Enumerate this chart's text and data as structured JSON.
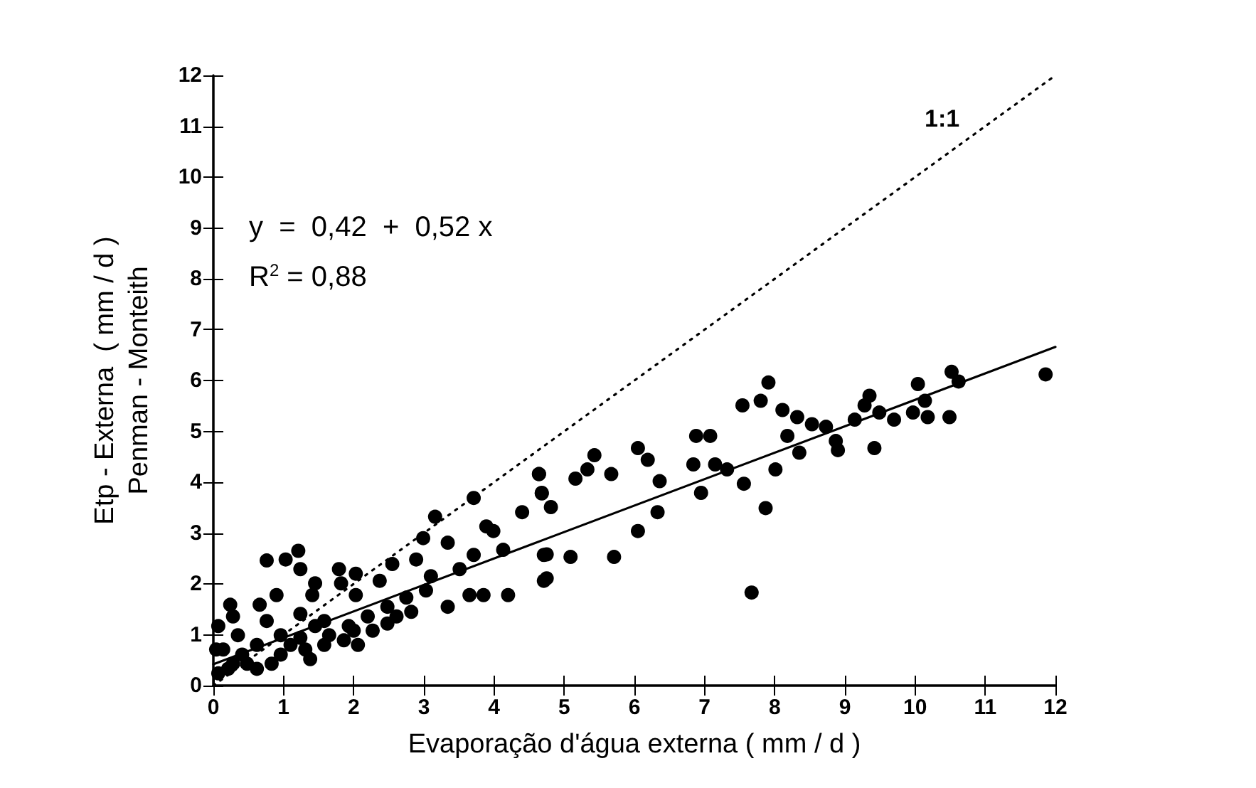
{
  "chart_data": {
    "type": "scatter",
    "xlabel": "Evaporação d'água externa ( mm / d )",
    "ylabel": "Etp - Externa  ( mm / d )\nPenman - Monteith",
    "annotations": [
      "y  =  0,42  +  0,52 x",
      "R$^{2}$ = 0,88",
      "1:1"
    ],
    "xlim": [
      0,
      12
    ],
    "ylim": [
      0,
      12
    ],
    "xticks": [
      0,
      1,
      2,
      3,
      4,
      5,
      6,
      7,
      8,
      9,
      10,
      11,
      12
    ],
    "yticks": [
      0,
      1,
      2,
      3,
      4,
      5,
      6,
      7,
      8,
      9,
      10,
      11,
      12
    ],
    "grid": false,
    "series": [
      {
        "marker": "circle",
        "color": "#000000",
        "x": [
          4.64,
          4.68,
          4.81,
          5.16,
          5.43,
          5.33,
          5.67,
          6.05,
          6.19,
          6.36,
          6.33,
          6.05,
          5.71,
          4.75,
          5.09,
          4.75,
          6.88,
          7.08,
          6.84,
          7.15,
          7.32,
          6.95,
          7.56,
          7.87,
          7.67,
          8.01,
          7.91,
          7.54,
          7.8,
          8.11,
          8.32,
          8.18,
          8.35,
          8.53,
          8.73,
          8.87,
          8.9,
          9.14,
          9.35,
          9.28,
          9.42,
          9.49,
          9.7,
          9.97,
          10.04,
          10.14,
          10.18,
          10.49,
          10.52,
          10.62,
          11.86,
          0.24,
          0.76,
          1.03,
          1.21,
          1.24,
          1.45,
          1.41,
          1.79,
          2.03,
          2.03,
          1.82,
          2.37,
          2.55,
          2.89,
          3.16,
          2.99,
          3.71,
          3.34,
          3.1,
          3.34,
          3.65,
          3.85,
          4.2,
          3.71,
          3.99,
          3.89,
          4.13,
          4.64,
          4.68,
          4.71,
          4.71,
          4.4,
          3.51,
          0.66,
          0.9,
          1.24,
          1.58,
          1.93,
          2.2,
          2.48,
          2.75,
          3.03,
          0.07,
          0.07,
          0.14,
          0.28,
          0.35,
          0.48,
          0.62,
          0.62,
          0.76,
          0.96,
          0.96,
          1.1,
          1.31,
          1.38,
          1.45,
          1.65,
          1.86,
          2.06,
          2.27,
          2.48,
          2.61,
          2.82,
          0.28,
          0.41,
          0.83,
          1.24,
          1.58,
          2.0,
          0.04,
          0.21
        ],
        "values": [
          4.16,
          3.79,
          3.51,
          4.07,
          4.53,
          4.25,
          4.16,
          4.67,
          4.44,
          4.02,
          3.41,
          3.04,
          2.53,
          2.58,
          2.53,
          2.11,
          4.91,
          4.91,
          4.35,
          4.35,
          4.25,
          3.79,
          3.97,
          3.49,
          1.83,
          4.25,
          5.96,
          5.51,
          5.6,
          5.42,
          5.28,
          4.91,
          4.58,
          5.14,
          5.09,
          4.81,
          4.63,
          5.23,
          5.7,
          5.51,
          4.67,
          5.37,
          5.23,
          5.37,
          5.93,
          5.6,
          5.28,
          5.28,
          6.17,
          5.98,
          6.12,
          1.59,
          2.46,
          2.48,
          2.65,
          2.29,
          2.01,
          1.78,
          2.29,
          2.2,
          1.78,
          2.01,
          2.06,
          2.39,
          2.48,
          3.32,
          2.9,
          3.69,
          2.81,
          2.15,
          1.55,
          1.78,
          1.78,
          1.78,
          2.57,
          3.04,
          3.13,
          2.67,
          4.16,
          3.78,
          2.57,
          2.06,
          3.41,
          2.29,
          1.59,
          1.78,
          1.41,
          1.27,
          1.17,
          1.36,
          1.55,
          1.73,
          1.87,
          1.17,
          0.24,
          0.71,
          0.43,
          0.99,
          0.43,
          0.8,
          0.33,
          1.27,
          0.99,
          0.61,
          0.8,
          0.71,
          0.52,
          1.17,
          0.99,
          0.89,
          0.8,
          1.08,
          1.22,
          1.36,
          1.45,
          1.36,
          0.61,
          0.43,
          0.94,
          0.8,
          1.08,
          0.71,
          0.33
        ]
      },
      {
        "type": "line",
        "marker": "none",
        "color": "#000000",
        "line_style": "solid",
        "x": [
          0,
          12
        ],
        "values": [
          0.42,
          6.66
        ]
      },
      {
        "type": "line",
        "marker": "none",
        "color": "#000000",
        "line_style": "dotted",
        "x": [
          0,
          12
        ],
        "values": [
          0,
          12
        ]
      }
    ]
  }
}
